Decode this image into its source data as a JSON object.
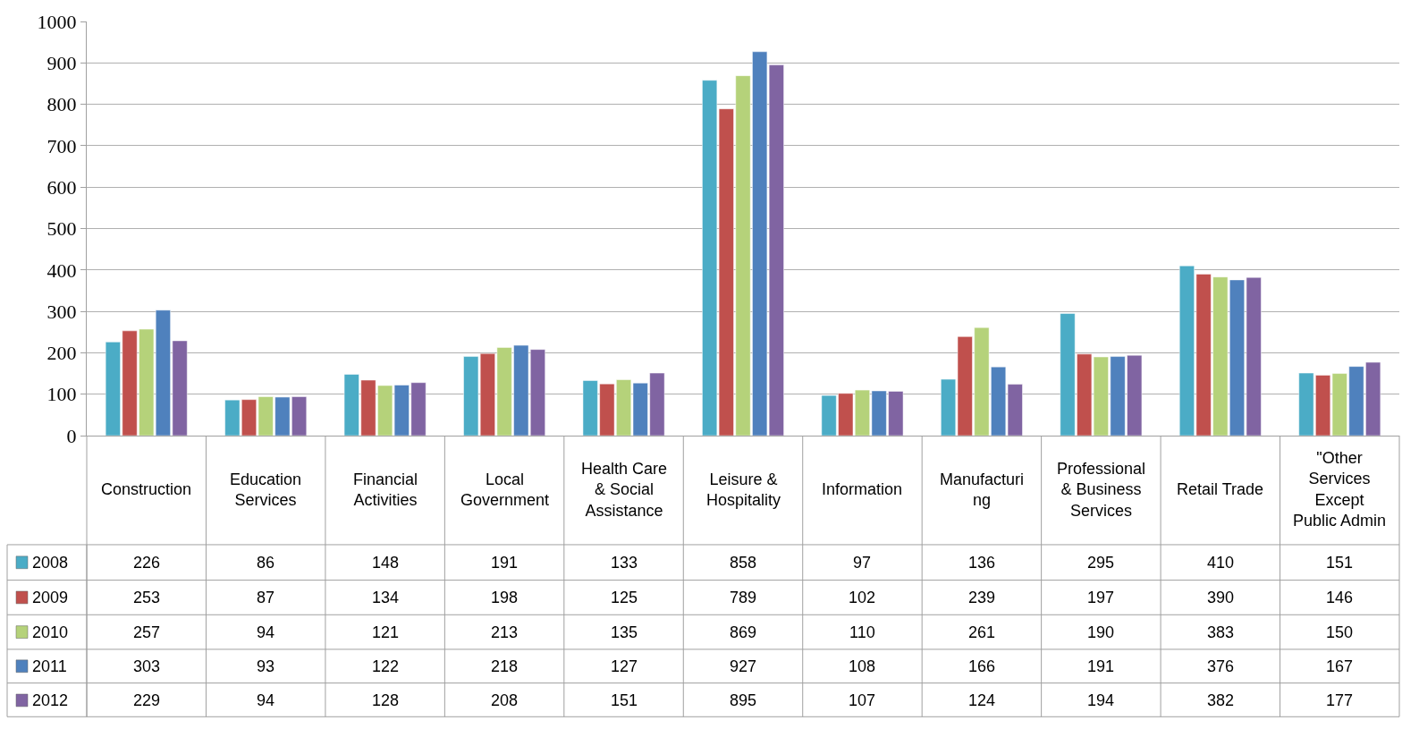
{
  "chart_data": {
    "type": "bar",
    "categories": [
      "Construction",
      "Education Services",
      "Financial Activities",
      "Local Government",
      "Health Care & Social Assistance",
      "Leisure & Hospitality",
      "Information",
      "Manufacturing",
      "Professional & Business Services",
      "Retail Trade",
      "\"Other Services Except Public Admin"
    ],
    "series": [
      {
        "name": "2008",
        "color": "#4bacc6",
        "values": [
          226,
          86,
          148,
          191,
          133,
          858,
          97,
          136,
          295,
          410,
          151
        ]
      },
      {
        "name": "2009",
        "color": "#c0504d",
        "values": [
          253,
          87,
          134,
          198,
          125,
          789,
          102,
          239,
          197,
          390,
          146
        ]
      },
      {
        "name": "2010",
        "color": "#b5d27a",
        "values": [
          257,
          94,
          121,
          213,
          135,
          869,
          110,
          261,
          190,
          383,
          150
        ]
      },
      {
        "name": "2011",
        "color": "#4f81bd",
        "values": [
          303,
          93,
          122,
          218,
          127,
          927,
          108,
          166,
          191,
          376,
          167
        ]
      },
      {
        "name": "2012",
        "color": "#8064a2",
        "values": [
          229,
          94,
          128,
          208,
          151,
          895,
          107,
          124,
          194,
          382,
          177
        ]
      }
    ],
    "ylim": [
      0,
      1000
    ],
    "yticks": [
      0,
      100,
      200,
      300,
      400,
      500,
      600,
      700,
      800,
      900,
      1000
    ],
    "grid": "y",
    "legend": "bottom left",
    "data_labels": true
  }
}
